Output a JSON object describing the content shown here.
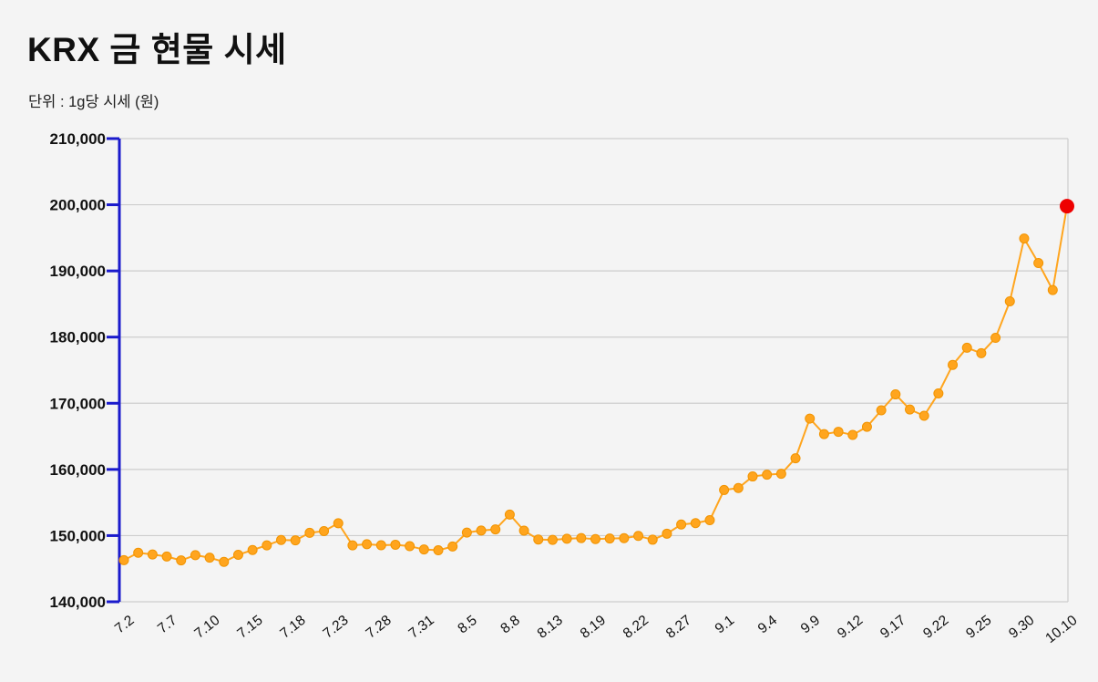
{
  "page": {
    "title": "KRX 금 현물 시세",
    "subtitle": "단위 : 1g당 시세 (원)"
  },
  "chart_data": {
    "type": "line",
    "title": "KRX 금 현물 시세",
    "unit_label": "단위 : 1g당 시세 (원)",
    "series_name": "KRX 금 현물 시세 (1g당, 원)",
    "x": [
      "7.2",
      "7.3",
      "7.4",
      "7.7",
      "7.8",
      "7.9",
      "7.10",
      "7.11",
      "7.14",
      "7.15",
      "7.16",
      "7.17",
      "7.18",
      "7.21",
      "7.22",
      "7.23",
      "7.24",
      "7.25",
      "7.28",
      "7.29",
      "7.30",
      "7.31",
      "8.1",
      "8.4",
      "8.5",
      "8.6",
      "8.7",
      "8.8",
      "8.11",
      "8.12",
      "8.13",
      "8.14",
      "8.18",
      "8.19",
      "8.20",
      "8.21",
      "8.22",
      "8.25",
      "8.26",
      "8.27",
      "8.28",
      "8.29",
      "9.1",
      "9.2",
      "9.3",
      "9.4",
      "9.5",
      "9.8",
      "9.9",
      "9.10",
      "9.11",
      "9.12",
      "9.15",
      "9.16",
      "9.17",
      "9.18",
      "9.19",
      "9.22",
      "9.23",
      "9.24",
      "9.25",
      "9.26",
      "9.29",
      "9.30",
      "10.1",
      "10.2",
      "10.10"
    ],
    "values": [
      146290,
      147400,
      147150,
      146840,
      146250,
      147050,
      146660,
      146030,
      147100,
      147820,
      148530,
      149330,
      149280,
      150420,
      150680,
      151870,
      148530,
      148700,
      148540,
      148620,
      148400,
      147900,
      147780,
      148350,
      150460,
      150760,
      150940,
      153180,
      150750,
      149410,
      149350,
      149520,
      149620,
      149480,
      149560,
      149610,
      149950,
      149380,
      150290,
      151680,
      151890,
      152330,
      156890,
      157190,
      158940,
      159210,
      159340,
      161690,
      167680,
      165340,
      165690,
      165210,
      166440,
      168940,
      171340,
      169060,
      168110,
      171490,
      175800,
      178390,
      177560,
      179890,
      185410,
      194900,
      191190,
      187110,
      199790
    ],
    "x_label_every": 3,
    "x_tick_labels_shown": [
      "7.2",
      "7.7",
      "7.10",
      "7.15",
      "7.18",
      "7.23",
      "7.28",
      "7.31",
      "8.5",
      "8.8",
      "8.13",
      "8.19",
      "8.22",
      "8.27",
      "9.1",
      "9.4",
      "9.9",
      "9.12",
      "9.17",
      "9.22",
      "9.25",
      "9.30",
      "10.10"
    ],
    "ylim": [
      140000,
      210000
    ],
    "ytick_step": 10000,
    "ytick_labels": [
      "140,000",
      "150,000",
      "160,000",
      "170,000",
      "180,000",
      "190,000",
      "200,000",
      "210,000"
    ],
    "grid": true,
    "legend_position": "none",
    "last_point_highlighted": true,
    "colors": {
      "line": "#FFA51E",
      "point": "#FFA51E",
      "point_edge": "#F29400",
      "last_point": "#EE0000",
      "axis": "#1A1ACC",
      "grid": "#CDCDCD",
      "background": "#F4F4F4",
      "text": "#111111"
    }
  }
}
